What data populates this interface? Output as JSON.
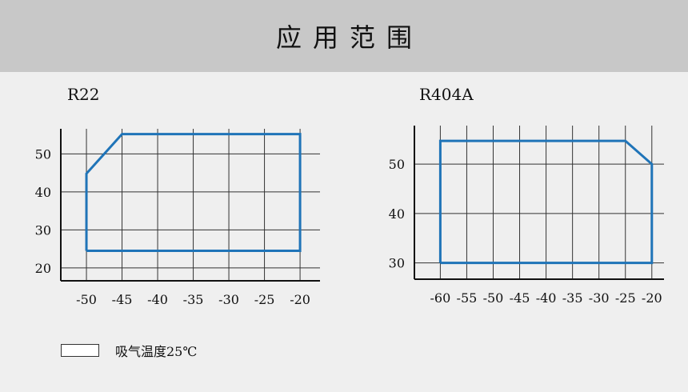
{
  "header": {
    "title": "应用范围"
  },
  "legend": {
    "label": "吸气温度25℃"
  },
  "colors": {
    "envelope": "#1f74b8",
    "grid": "#333333",
    "axis": "#111111"
  },
  "chart_data": [
    {
      "type": "area",
      "title": "R22",
      "xlabel": "",
      "ylabel": "",
      "x_ticks": [
        -50,
        -45,
        -40,
        -35,
        -30,
        -25,
        -20
      ],
      "y_ticks": [
        20,
        30,
        40,
        50
      ],
      "xlim": [
        -53.6,
        -17.2
      ],
      "ylim": [
        16.6,
        56.6
      ],
      "grid": true,
      "series": [
        {
          "points": [
            [
              -50,
              24.5
            ],
            [
              -50,
              44.8
            ],
            [
              -45,
              55.2
            ],
            [
              -20,
              55.2
            ],
            [
              -20,
              24.5
            ],
            [
              -50,
              24.5
            ]
          ]
        }
      ]
    },
    {
      "type": "area",
      "title": "R404A",
      "xlabel": "",
      "ylabel": "",
      "x_ticks": [
        -60,
        -55,
        -50,
        -45,
        -40,
        -35,
        -30,
        -25,
        -20
      ],
      "y_ticks": [
        30,
        40,
        50
      ],
      "xlim": [
        -64.9,
        -17.7
      ],
      "ylim": [
        26.7,
        57.8
      ],
      "grid": true,
      "series": [
        {
          "points": [
            [
              -60,
              30
            ],
            [
              -60,
              54.7
            ],
            [
              -25,
              54.7
            ],
            [
              -20,
              50
            ],
            [
              -20,
              30
            ],
            [
              -60,
              30
            ]
          ]
        }
      ]
    }
  ]
}
